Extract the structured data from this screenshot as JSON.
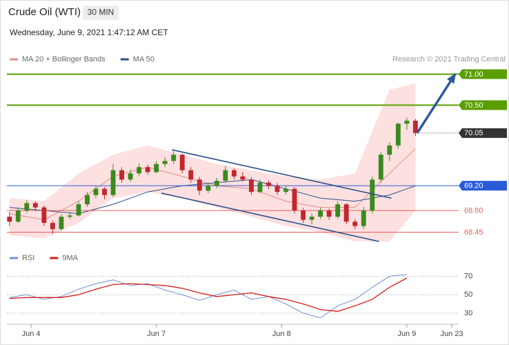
{
  "chart_data": [
    {
      "type": "candlestick",
      "title": "Crude Oil (WTI)",
      "timeframe": "30 MIN",
      "subtitle": "Wednesday, June 9, 2021 1:47:12 AM CET",
      "credit": "Research © 2021 Trading Central",
      "candles": [
        [
          68.7,
          68.78,
          68.55,
          68.62
        ],
        [
          68.62,
          68.85,
          68.6,
          68.8
        ],
        [
          68.8,
          68.97,
          68.76,
          68.92
        ],
        [
          68.92,
          68.95,
          68.8,
          68.85
        ],
        [
          68.85,
          68.88,
          68.55,
          68.6
        ],
        [
          68.6,
          68.64,
          68.42,
          68.5
        ],
        [
          68.5,
          68.74,
          68.47,
          68.7
        ],
        [
          68.7,
          68.78,
          68.66,
          68.72
        ],
        [
          68.72,
          68.95,
          68.7,
          68.9
        ],
        [
          68.9,
          69.1,
          68.86,
          69.05
        ],
        [
          69.05,
          69.2,
          69.0,
          69.15
        ],
        [
          69.15,
          69.18,
          68.98,
          69.05
        ],
        [
          69.05,
          69.55,
          69.02,
          69.45
        ],
        [
          69.45,
          69.5,
          69.25,
          69.3
        ],
        [
          69.3,
          69.46,
          69.26,
          69.4
        ],
        [
          69.4,
          69.56,
          69.35,
          69.5
        ],
        [
          69.5,
          69.54,
          69.38,
          69.42
        ],
        [
          69.42,
          69.6,
          69.4,
          69.55
        ],
        [
          69.55,
          69.66,
          69.5,
          69.6
        ],
        [
          69.6,
          69.76,
          69.55,
          69.7
        ],
        [
          69.7,
          69.72,
          69.4,
          69.45
        ],
        [
          69.45,
          69.5,
          69.25,
          69.3
        ],
        [
          69.3,
          69.34,
          69.05,
          69.12
        ],
        [
          69.12,
          69.25,
          69.08,
          69.2
        ],
        [
          69.2,
          69.33,
          69.16,
          69.28
        ],
        [
          69.28,
          69.52,
          69.25,
          69.45
        ],
        [
          69.45,
          69.48,
          69.3,
          69.35
        ],
        [
          69.35,
          69.42,
          69.27,
          69.3
        ],
        [
          69.3,
          69.34,
          69.05,
          69.1
        ],
        [
          69.1,
          69.3,
          69.08,
          69.25
        ],
        [
          69.25,
          69.28,
          69.15,
          69.2
        ],
        [
          69.2,
          69.24,
          69.05,
          69.1
        ],
        [
          69.1,
          69.2,
          69.06,
          69.15
        ],
        [
          69.15,
          69.18,
          68.75,
          68.8
        ],
        [
          68.8,
          68.84,
          68.6,
          68.65
        ],
        [
          68.65,
          68.75,
          68.58,
          68.7
        ],
        [
          68.7,
          68.85,
          68.66,
          68.8
        ],
        [
          68.8,
          68.83,
          68.65,
          68.7
        ],
        [
          68.7,
          68.95,
          68.67,
          68.9
        ],
        [
          68.9,
          68.92,
          68.58,
          68.62
        ],
        [
          68.62,
          68.66,
          68.5,
          68.55
        ],
        [
          68.55,
          68.86,
          68.5,
          68.8
        ],
        [
          68.8,
          69.35,
          68.75,
          69.3
        ],
        [
          69.3,
          69.75,
          69.25,
          69.7
        ],
        [
          69.7,
          69.9,
          69.6,
          69.85
        ],
        [
          69.85,
          70.22,
          69.8,
          70.2
        ],
        [
          70.2,
          70.3,
          70.1,
          70.25
        ],
        [
          70.25,
          70.28,
          70.0,
          70.05
        ]
      ],
      "up_color": "#3a8a1e",
      "down_color": "#c0282d",
      "series": [
        {
          "name": "MA 20 + Bollinger Bands",
          "color": "#e88a8a",
          "band_color": "#fde0e0",
          "x": [
            0,
            4,
            8,
            12,
            16,
            20,
            24,
            28,
            32,
            36,
            40,
            44,
            47
          ],
          "values": [
            68.75,
            68.65,
            68.95,
            69.35,
            69.5,
            69.35,
            69.2,
            69.15,
            68.95,
            68.85,
            68.85,
            69.4,
            69.8
          ],
          "upper": [
            69.0,
            68.95,
            69.4,
            69.7,
            69.85,
            69.7,
            69.55,
            69.45,
            69.35,
            69.3,
            69.4,
            70.75,
            70.85
          ],
          "lower": [
            68.4,
            68.35,
            68.6,
            69.0,
            69.1,
            69.0,
            68.85,
            68.7,
            68.55,
            68.45,
            68.3,
            68.3,
            68.8
          ]
        },
        {
          "name": "MA 50",
          "color": "#2c4f8a",
          "x": [
            0,
            4,
            8,
            12,
            16,
            20,
            24,
            28,
            32,
            36,
            40,
            44,
            47
          ],
          "values": [
            68.85,
            68.8,
            68.75,
            68.9,
            69.1,
            69.2,
            69.25,
            69.3,
            69.15,
            69.0,
            68.95,
            69.05,
            69.2
          ]
        }
      ],
      "levels": [
        {
          "value": 71,
          "label": "71.00",
          "color": "#5a9e00",
          "style": "bold",
          "boxed": true
        },
        {
          "value": 70.5,
          "label": "70.50",
          "color": "#5a9e00",
          "style": "bold",
          "boxed": true
        },
        {
          "value": 70.05,
          "label": "70.05",
          "color": "#333333",
          "style": "dotted",
          "boxed": true
        },
        {
          "value": 69.2,
          "label": "69.20",
          "color": "#2a5bd7",
          "style": "thin",
          "boxed": true
        },
        {
          "value": 68.8,
          "label": "68.80",
          "color": "#e06060",
          "style": "thin",
          "boxed": false
        },
        {
          "value": 68.45,
          "label": "68.45",
          "color": "#e06060",
          "style": "thin",
          "boxed": false
        }
      ],
      "channel": [
        {
          "x": [
            18.8,
            44.2
          ],
          "y": [
            69.78,
            69.0
          ]
        },
        {
          "x": [
            17.6,
            42.8
          ],
          "y": [
            69.08,
            68.3
          ]
        }
      ],
      "arrow": {
        "x": [
          47.2,
          51.6
        ],
        "y": [
          70.05,
          71.0
        ]
      },
      "xlim": [
        -0.3,
        52
      ],
      "ylim": [
        68.2,
        71.15
      ]
    },
    {
      "type": "line",
      "series": [
        {
          "name": "RSI",
          "color": "#6f8fd6",
          "x": [
            0,
            2,
            4,
            6,
            8,
            10,
            12,
            14,
            16,
            18,
            20,
            22,
            24,
            26,
            28,
            30,
            32,
            34,
            36,
            38,
            40,
            42,
            44,
            46
          ],
          "values": [
            47,
            50,
            45,
            48,
            56,
            62,
            66,
            60,
            62,
            55,
            50,
            44,
            50,
            55,
            45,
            48,
            40,
            30,
            25,
            38,
            45,
            58,
            70,
            72
          ]
        },
        {
          "name": "9MA",
          "color": "#d11a1a",
          "x": [
            0,
            2,
            4,
            6,
            8,
            10,
            12,
            14,
            16,
            18,
            20,
            22,
            24,
            26,
            28,
            30,
            32,
            34,
            36,
            38,
            40,
            42,
            44,
            46
          ],
          "values": [
            46,
            47,
            47,
            47,
            50,
            56,
            61,
            62,
            61,
            60,
            57,
            52,
            48,
            50,
            52,
            48,
            45,
            40,
            34,
            32,
            38,
            45,
            58,
            68
          ]
        }
      ],
      "xlim": [
        -0.3,
        52
      ],
      "ylim": [
        18,
        74
      ],
      "yticks": [
        30,
        50,
        70
      ],
      "grid": true,
      "xticks": [
        {
          "value": 2.5,
          "label": "Jun 4"
        },
        {
          "value": 17,
          "label": "Jun 7"
        },
        {
          "value": 31.5,
          "label": "Jun 8"
        },
        {
          "value": 46,
          "label": "Jun 9"
        },
        {
          "value": 51.2,
          "label": "Jun 23"
        }
      ]
    }
  ]
}
